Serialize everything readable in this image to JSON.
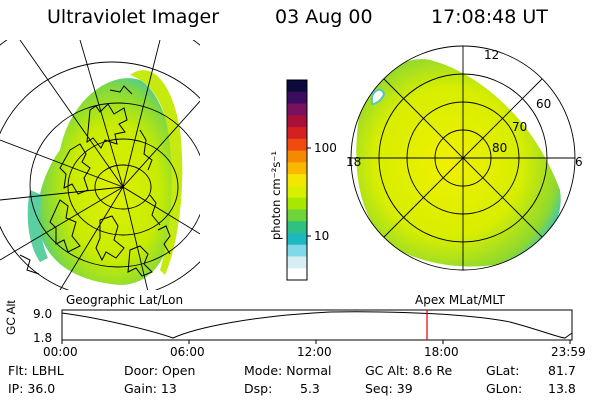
{
  "header": {
    "instrument": "Ultraviolet Imager",
    "date": "03 Aug 00",
    "time": "17:08:48 UT"
  },
  "left_panel": {
    "label": "Geographic Lat/Lon"
  },
  "right_panel": {
    "label": "Apex MLat/MLT",
    "mlt_labels": {
      "top": "12",
      "left": "18",
      "right": "6"
    },
    "lat_labels": [
      "60",
      "70",
      "80"
    ]
  },
  "colorbar": {
    "unit_label": "photon cm⁻²s⁻¹",
    "scale": "log",
    "ticks": [
      "100",
      "10"
    ],
    "colors_top_to_bottom": [
      "#0a0a3c",
      "#3a0d60",
      "#7a1060",
      "#a8103a",
      "#d42020",
      "#f04a10",
      "#f58a00",
      "#fbb800",
      "#f4e600",
      "#d8f000",
      "#a8e800",
      "#6ed43a",
      "#30c080",
      "#20b8c0",
      "#80d8e8",
      "#d8eef2",
      "#ffffff"
    ]
  },
  "timeline": {
    "y_title": "GC Alt",
    "y_ticks": [
      "9.0",
      "1.8"
    ],
    "x_ticks": [
      "00:00",
      "06:00",
      "12:00",
      "18:00",
      "23:59"
    ],
    "current_marker_color": "#e00000"
  },
  "info": {
    "flt": "Flt: LBHL",
    "ip": "IP: 36.0",
    "door": "Door: Open",
    "gain": "Gain: 13",
    "mode": "Mode: Normal",
    "dsp_label": "Dsp:",
    "dsp_value": "5.3",
    "gc_alt": "GC Alt: 8.6 Re",
    "seq": "Seq: 39",
    "glat_label": "GLat:",
    "glat_value": "81.7",
    "glon_label": "GLon:",
    "glon_value": "13.8"
  }
}
